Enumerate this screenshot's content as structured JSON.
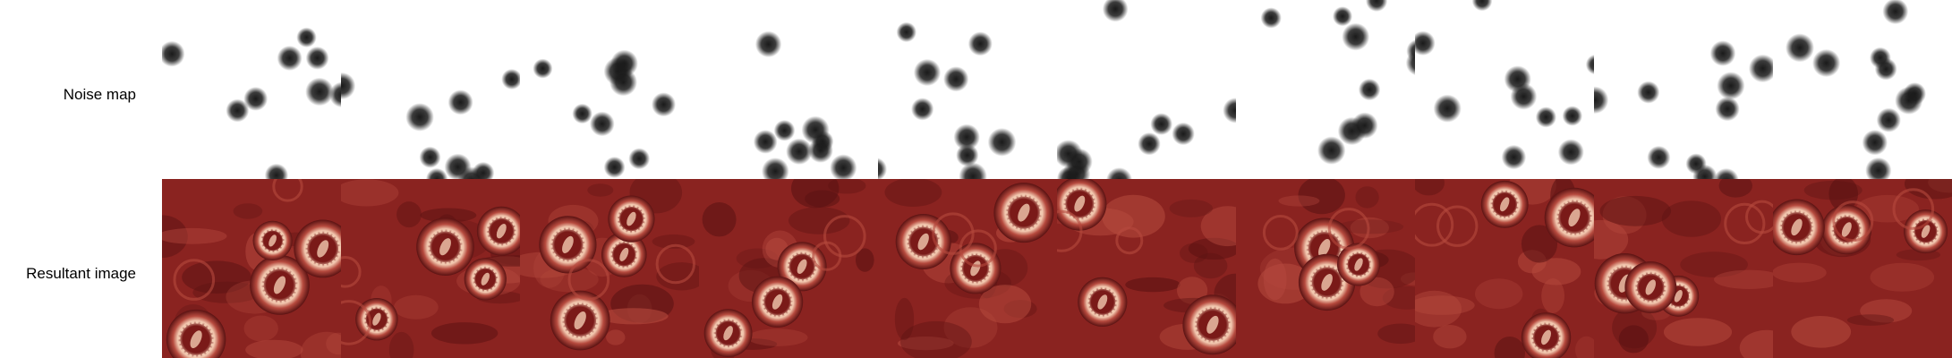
{
  "labels": {
    "noise_map": "Noise map",
    "resultant_image": "Resultant image"
  },
  "colors": {
    "background": "#ffffff",
    "noise_blob": "#1a1a1a",
    "tissue_dark": "#5a1212",
    "tissue_mid": "#8a2320",
    "tissue_light": "#b64a3e",
    "cell_ring": "#f2c9b0",
    "cell_core": "#7a1a18"
  },
  "columns": [
    {
      "id": 1
    },
    {
      "id": 2
    },
    {
      "id": 3
    },
    {
      "id": 4
    },
    {
      "id": 5
    },
    {
      "id": 6
    },
    {
      "id": 7
    },
    {
      "id": 8
    },
    {
      "id": 9
    },
    {
      "id": 10
    }
  ]
}
